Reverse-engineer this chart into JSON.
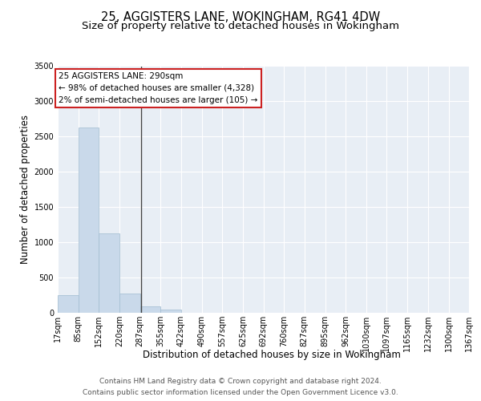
{
  "title1": "25, AGGISTERS LANE, WOKINGHAM, RG41 4DW",
  "title2": "Size of property relative to detached houses in Wokingham",
  "xlabel": "Distribution of detached houses by size in Wokingham",
  "ylabel": "Number of detached properties",
  "footer1": "Contains HM Land Registry data © Crown copyright and database right 2024.",
  "footer2": "Contains public sector information licensed under the Open Government Licence v3.0.",
  "annotation_line1": "25 AGGISTERS LANE: 290sqm",
  "annotation_line2": "← 98% of detached houses are smaller (4,328)",
  "annotation_line3": "2% of semi-detached houses are larger (105) →",
  "bar_color": "#c9d9ea",
  "bar_edge_color": "#a0bcd0",
  "vline_color": "#444444",
  "property_sqm": 290,
  "bin_edges": [
    17,
    85,
    152,
    220,
    287,
    355,
    422,
    490,
    557,
    625,
    692,
    760,
    827,
    895,
    962,
    1030,
    1097,
    1165,
    1232,
    1300,
    1367
  ],
  "bin_counts": [
    255,
    2630,
    1130,
    270,
    90,
    40,
    0,
    0,
    0,
    0,
    0,
    0,
    0,
    0,
    0,
    0,
    0,
    0,
    0,
    0
  ],
  "ylim": [
    0,
    3500
  ],
  "yticks": [
    0,
    500,
    1000,
    1500,
    2000,
    2500,
    3000,
    3500
  ],
  "plot_bg_color": "#e8eef5",
  "grid_color": "#ffffff",
  "title_fontsize": 10.5,
  "subtitle_fontsize": 9.5,
  "tick_fontsize": 7,
  "ylabel_fontsize": 8.5,
  "xlabel_fontsize": 8.5,
  "footer_fontsize": 6.5,
  "annotation_fontsize": 7.5,
  "box_edge_color": "#cc2222",
  "box_face_color": "#ffffff"
}
